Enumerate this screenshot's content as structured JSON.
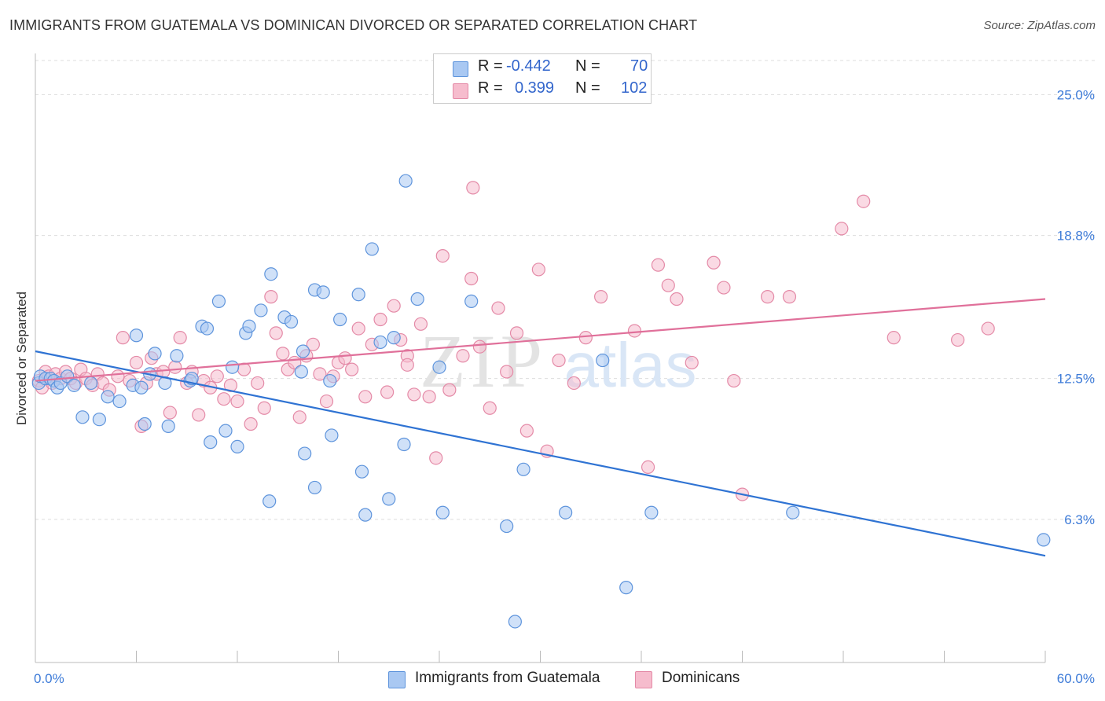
{
  "header": {
    "title": "IMMIGRANTS FROM GUATEMALA VS DOMINICAN DIVORCED OR SEPARATED CORRELATION CHART",
    "source": "Source: ZipAtlas.com"
  },
  "watermark": {
    "zip": "ZIP",
    "atlas": "atlas"
  },
  "legend": {
    "rows": [
      {
        "r_label": "R =",
        "r_value": "-0.442",
        "n_label": "N =",
        "n_value": "70"
      },
      {
        "r_label": "R =",
        "r_value": "0.399",
        "n_label": "N =",
        "n_value": "102"
      }
    ]
  },
  "colors": {
    "blue_fill": "#a9c8f2",
    "blue_stroke": "#5e94dc",
    "blue_line": "#2f73d3",
    "pink_fill": "#f6bccd",
    "pink_stroke": "#e48aa7",
    "pink_line": "#e0709a",
    "axis_text": "#3d7bd8",
    "grid": "#dddddd"
  },
  "chart_data": {
    "type": "scatter",
    "title": "IMMIGRANTS FROM GUATEMALA VS DOMINICAN DIVORCED OR SEPARATED CORRELATION CHART",
    "xlabel": "",
    "ylabel": "Divorced or Separated",
    "xlim": [
      0,
      60
    ],
    "ylim": [
      0,
      26.5
    ],
    "x_tick_labels": [
      "0.0%",
      "60.0%"
    ],
    "y_ticks": [
      6.3,
      12.5,
      18.8,
      25.0
    ],
    "y_tick_labels": [
      "6.3%",
      "12.5%",
      "18.8%",
      "25.0%"
    ],
    "grid": "horizontal-dashed",
    "legend_position": "top-center",
    "series": [
      {
        "name": "Immigrants from Guatemala",
        "color": "#a9c8f2",
        "trend": {
          "x": [
            0,
            60
          ],
          "y": [
            13.7,
            4.7
          ]
        },
        "points": [
          [
            0.2,
            12.3
          ],
          [
            0.3,
            12.6
          ],
          [
            0.6,
            12.5
          ],
          [
            0.9,
            12.5
          ],
          [
            1.1,
            12.4
          ],
          [
            1.3,
            12.1
          ],
          [
            1.5,
            12.3
          ],
          [
            1.9,
            12.6
          ],
          [
            2.3,
            12.2
          ],
          [
            2.8,
            10.8
          ],
          [
            3.3,
            12.3
          ],
          [
            3.8,
            10.7
          ],
          [
            4.3,
            11.7
          ],
          [
            5.0,
            11.5
          ],
          [
            5.8,
            12.2
          ],
          [
            6.0,
            14.4
          ],
          [
            6.3,
            12.1
          ],
          [
            6.5,
            10.5
          ],
          [
            6.8,
            12.7
          ],
          [
            7.1,
            13.6
          ],
          [
            7.7,
            12.3
          ],
          [
            7.9,
            10.4
          ],
          [
            8.4,
            13.5
          ],
          [
            9.2,
            12.4
          ],
          [
            9.3,
            12.5
          ],
          [
            9.9,
            14.8
          ],
          [
            10.2,
            14.7
          ],
          [
            10.4,
            9.7
          ],
          [
            10.9,
            15.9
          ],
          [
            11.3,
            10.2
          ],
          [
            11.7,
            13.0
          ],
          [
            12.0,
            9.5
          ],
          [
            12.5,
            14.5
          ],
          [
            12.7,
            14.8
          ],
          [
            13.4,
            15.5
          ],
          [
            14.0,
            17.1
          ],
          [
            14.8,
            15.2
          ],
          [
            15.2,
            15.0
          ],
          [
            15.9,
            13.7
          ],
          [
            16.6,
            16.4
          ],
          [
            17.1,
            16.3
          ],
          [
            17.5,
            12.4
          ],
          [
            17.6,
            10.0
          ],
          [
            18.1,
            15.1
          ],
          [
            19.2,
            16.2
          ],
          [
            19.6,
            6.5
          ],
          [
            20.0,
            18.2
          ],
          [
            20.5,
            14.1
          ],
          [
            21.0,
            7.2
          ],
          [
            21.3,
            14.3
          ],
          [
            22.0,
            21.2
          ],
          [
            22.7,
            16.0
          ],
          [
            24.2,
            6.6
          ],
          [
            24.0,
            13.0
          ],
          [
            25.9,
            15.9
          ],
          [
            28.0,
            6.0
          ],
          [
            29.0,
            8.5
          ],
          [
            28.5,
            1.8
          ],
          [
            31.5,
            6.6
          ],
          [
            33.7,
            13.3
          ],
          [
            35.1,
            3.3
          ],
          [
            36.6,
            6.6
          ],
          [
            59.9,
            5.4
          ],
          [
            45.0,
            6.6
          ],
          [
            13.9,
            7.1
          ],
          [
            15.8,
            12.8
          ],
          [
            16.6,
            7.7
          ],
          [
            16.0,
            9.2
          ],
          [
            19.4,
            8.4
          ],
          [
            21.9,
            9.6
          ]
        ]
      },
      {
        "name": "Dominicans",
        "color": "#f6bccd",
        "trend": {
          "x": [
            0,
            60
          ],
          "y": [
            12.4,
            16.0
          ]
        },
        "points": [
          [
            0.2,
            12.4
          ],
          [
            0.4,
            12.1
          ],
          [
            0.6,
            12.8
          ],
          [
            0.8,
            12.6
          ],
          [
            1.0,
            12.3
          ],
          [
            1.2,
            12.7
          ],
          [
            1.5,
            12.5
          ],
          [
            1.8,
            12.8
          ],
          [
            2.1,
            12.5
          ],
          [
            2.4,
            12.3
          ],
          [
            2.7,
            12.9
          ],
          [
            3.0,
            12.5
          ],
          [
            3.4,
            12.2
          ],
          [
            3.7,
            12.7
          ],
          [
            4.0,
            12.3
          ],
          [
            4.4,
            12.0
          ],
          [
            4.9,
            12.6
          ],
          [
            5.2,
            14.3
          ],
          [
            5.6,
            12.4
          ],
          [
            6.0,
            13.2
          ],
          [
            6.3,
            10.4
          ],
          [
            6.6,
            12.3
          ],
          [
            6.9,
            13.4
          ],
          [
            7.2,
            12.7
          ],
          [
            7.6,
            12.8
          ],
          [
            8.0,
            11.0
          ],
          [
            8.3,
            13.0
          ],
          [
            8.6,
            14.3
          ],
          [
            9.0,
            12.3
          ],
          [
            9.3,
            12.8
          ],
          [
            9.7,
            10.9
          ],
          [
            10.0,
            12.4
          ],
          [
            10.4,
            12.1
          ],
          [
            10.8,
            12.6
          ],
          [
            11.2,
            11.6
          ],
          [
            11.6,
            12.2
          ],
          [
            12.0,
            11.5
          ],
          [
            12.4,
            12.9
          ],
          [
            12.8,
            10.5
          ],
          [
            13.2,
            12.3
          ],
          [
            13.6,
            11.2
          ],
          [
            14.0,
            16.1
          ],
          [
            14.3,
            14.5
          ],
          [
            14.7,
            13.6
          ],
          [
            15.0,
            12.9
          ],
          [
            15.4,
            13.2
          ],
          [
            15.7,
            10.8
          ],
          [
            16.1,
            13.5
          ],
          [
            16.5,
            14.0
          ],
          [
            16.9,
            12.7
          ],
          [
            17.3,
            11.5
          ],
          [
            17.7,
            12.6
          ],
          [
            18.0,
            13.2
          ],
          [
            18.4,
            13.4
          ],
          [
            18.8,
            12.9
          ],
          [
            19.2,
            14.7
          ],
          [
            19.6,
            11.7
          ],
          [
            20.0,
            14.0
          ],
          [
            20.5,
            15.1
          ],
          [
            20.9,
            11.9
          ],
          [
            21.3,
            15.7
          ],
          [
            21.7,
            14.2
          ],
          [
            22.1,
            13.5
          ],
          [
            22.5,
            11.8
          ],
          [
            22.9,
            14.9
          ],
          [
            23.4,
            11.7
          ],
          [
            23.8,
            9.0
          ],
          [
            24.2,
            17.9
          ],
          [
            24.6,
            12.0
          ],
          [
            25.4,
            13.5
          ],
          [
            25.9,
            16.9
          ],
          [
            26.4,
            13.9
          ],
          [
            27.0,
            11.2
          ],
          [
            27.5,
            15.6
          ],
          [
            28.0,
            12.8
          ],
          [
            28.6,
            14.5
          ],
          [
            29.2,
            10.2
          ],
          [
            29.9,
            17.3
          ],
          [
            30.4,
            9.3
          ],
          [
            31.1,
            13.3
          ],
          [
            32.0,
            12.3
          ],
          [
            32.7,
            14.3
          ],
          [
            33.6,
            16.1
          ],
          [
            35.6,
            14.6
          ],
          [
            36.4,
            8.6
          ],
          [
            37.0,
            17.5
          ],
          [
            37.6,
            16.6
          ],
          [
            38.1,
            16.0
          ],
          [
            39.0,
            13.2
          ],
          [
            40.3,
            17.6
          ],
          [
            40.9,
            16.5
          ],
          [
            41.5,
            12.4
          ],
          [
            42.0,
            7.4
          ],
          [
            43.5,
            16.1
          ],
          [
            44.8,
            16.1
          ],
          [
            47.9,
            19.1
          ],
          [
            49.2,
            20.3
          ],
          [
            51.0,
            14.3
          ],
          [
            54.8,
            14.2
          ],
          [
            56.6,
            14.7
          ],
          [
            26.0,
            20.9
          ],
          [
            22.1,
            13.1
          ]
        ]
      }
    ]
  },
  "bottom_legend": {
    "items": [
      {
        "label": "Immigrants from Guatemala"
      },
      {
        "label": "Dominicans"
      }
    ]
  }
}
